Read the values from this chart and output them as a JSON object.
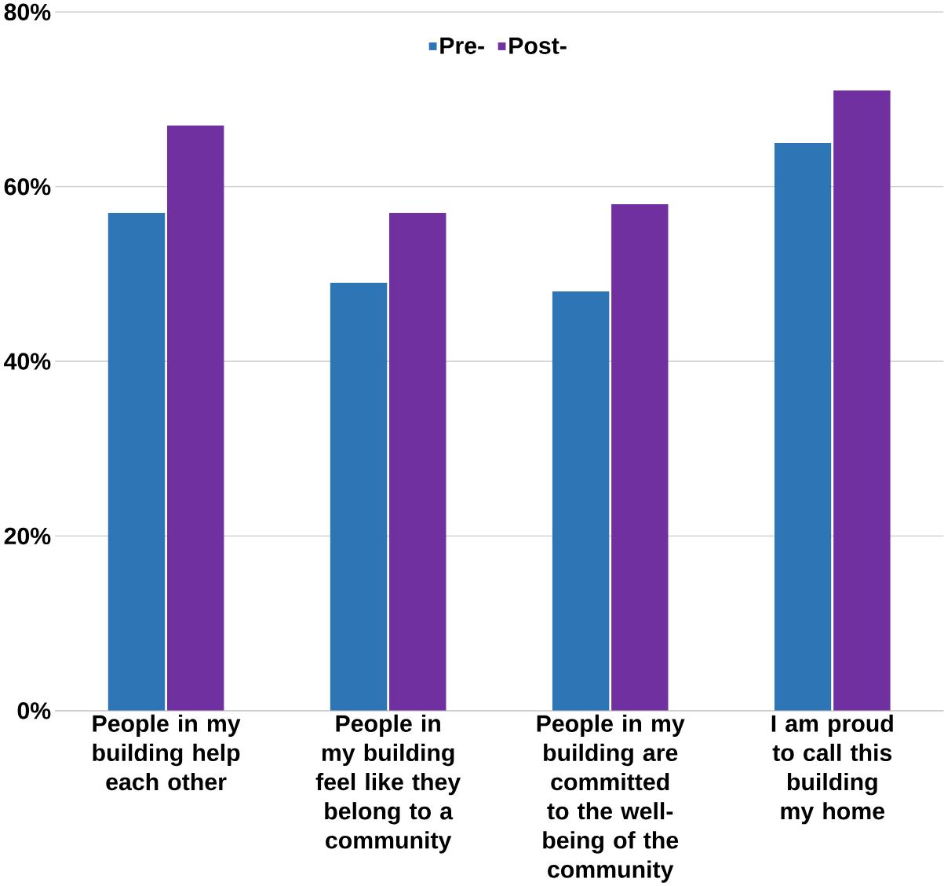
{
  "chart_data": {
    "type": "bar",
    "categories": [
      "People in my building help each other",
      "People in my building feel like they belong to a community",
      "People in my building are committed to the well-being of the community",
      "I am proud to call this building my home"
    ],
    "series": [
      {
        "name": "Pre-",
        "color": "#2e75b6",
        "values": [
          57,
          49,
          48,
          65
        ]
      },
      {
        "name": "Post-",
        "color": "#7030a0",
        "values": [
          67,
          57,
          58,
          71
        ]
      }
    ],
    "ylim": [
      0,
      80
    ],
    "yticks": [
      {
        "value": 0,
        "label": "0%"
      },
      {
        "value": 20,
        "label": "20%"
      },
      {
        "value": 40,
        "label": "40%"
      },
      {
        "value": 60,
        "label": "60%"
      },
      {
        "value": 80,
        "label": "80%"
      }
    ],
    "grid": "y",
    "legend": "top"
  }
}
